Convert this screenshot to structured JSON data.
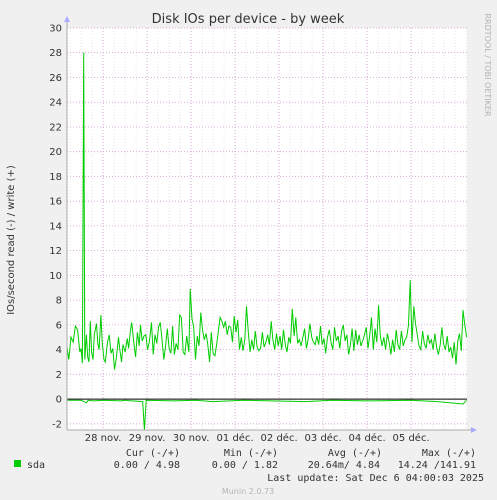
{
  "chart_data": {
    "type": "line",
    "title": "Disk IOs per device - by week",
    "ylabel": "IOs/second read (-) / write (+)",
    "side_text": "RRDTOOL / TOBI OETIKER",
    "ylim": [
      -2.5,
      30
    ],
    "y_ticks": [
      -2,
      0,
      2,
      4,
      6,
      8,
      10,
      12,
      14,
      16,
      18,
      20,
      22,
      24,
      26,
      28,
      30
    ],
    "x_ticks": [
      "28 nov.",
      "29 nov.",
      "30 nov.",
      "01 déc.",
      "02 déc.",
      "03 déc.",
      "04 déc.",
      "05 déc."
    ],
    "x_tick_positions": [
      1,
      2,
      3,
      4,
      5,
      6,
      7,
      8
    ],
    "xlim": [
      0.18,
      9.27
    ],
    "grid": true,
    "series": [
      {
        "name": "sda",
        "color": "#00cc00",
        "write_values": [
          [
            0.18,
            4.2
          ],
          [
            0.22,
            3.2
          ],
          [
            0.27,
            5.0
          ],
          [
            0.32,
            4.6
          ],
          [
            0.37,
            5.9
          ],
          [
            0.42,
            5.6
          ],
          [
            0.47,
            3.8
          ],
          [
            0.5,
            4.1
          ],
          [
            0.53,
            2.9
          ],
          [
            0.56,
            28.0
          ],
          [
            0.585,
            3.2
          ],
          [
            0.62,
            5.2
          ],
          [
            0.65,
            3.4
          ],
          [
            0.68,
            3.0
          ],
          [
            0.71,
            6.3
          ],
          [
            0.74,
            3.8
          ],
          [
            0.77,
            3.2
          ],
          [
            0.8,
            5.2
          ],
          [
            0.85,
            6.1
          ],
          [
            0.88,
            4.5
          ],
          [
            0.91,
            4.0
          ],
          [
            0.95,
            6.8
          ],
          [
            0.98,
            4.6
          ],
          [
            1.02,
            3.2
          ],
          [
            1.05,
            3.0
          ],
          [
            1.1,
            4.6
          ],
          [
            1.14,
            5.2
          ],
          [
            1.18,
            3.7
          ],
          [
            1.22,
            4.1
          ],
          [
            1.26,
            2.4
          ],
          [
            1.3,
            3.3
          ],
          [
            1.35,
            5.0
          ],
          [
            1.38,
            4.0
          ],
          [
            1.42,
            3.0
          ],
          [
            1.45,
            4.4
          ],
          [
            1.5,
            3.8
          ],
          [
            1.55,
            4.9
          ],
          [
            1.58,
            4.1
          ],
          [
            1.62,
            5.5
          ],
          [
            1.65,
            6.2
          ],
          [
            1.7,
            4.5
          ],
          [
            1.74,
            3.4
          ],
          [
            1.78,
            5.4
          ],
          [
            1.82,
            4.3
          ],
          [
            1.85,
            6.0
          ],
          [
            1.89,
            4.7
          ],
          [
            1.93,
            5.1
          ],
          [
            1.97,
            5.2
          ],
          [
            2.01,
            4.0
          ],
          [
            2.05,
            4.6
          ],
          [
            2.1,
            6.2
          ],
          [
            2.14,
            3.6
          ],
          [
            2.18,
            5.2
          ],
          [
            2.22,
            4.5
          ],
          [
            2.26,
            5.8
          ],
          [
            2.3,
            6.2
          ],
          [
            2.34,
            4.8
          ],
          [
            2.38,
            3.2
          ],
          [
            2.42,
            4.3
          ],
          [
            2.46,
            5.7
          ],
          [
            2.5,
            4.1
          ],
          [
            2.54,
            3.7
          ],
          [
            2.58,
            5.9
          ],
          [
            2.62,
            3.6
          ],
          [
            2.66,
            4.5
          ],
          [
            2.7,
            4.0
          ],
          [
            2.74,
            6.8
          ],
          [
            2.78,
            6.6
          ],
          [
            2.82,
            3.8
          ],
          [
            2.86,
            3.6
          ],
          [
            2.9,
            5.1
          ],
          [
            2.95,
            3.8
          ],
          [
            2.98,
            8.9
          ],
          [
            3.02,
            6.5
          ],
          [
            3.06,
            5.8
          ],
          [
            3.1,
            3.2
          ],
          [
            3.14,
            5.1
          ],
          [
            3.18,
            4.3
          ],
          [
            3.22,
            7.0
          ],
          [
            3.26,
            5.6
          ],
          [
            3.3,
            4.8
          ],
          [
            3.34,
            5.3
          ],
          [
            3.38,
            4.4
          ],
          [
            3.42,
            3.0
          ],
          [
            3.46,
            5.4
          ],
          [
            3.5,
            3.7
          ],
          [
            3.54,
            3.5
          ],
          [
            3.58,
            4.4
          ],
          [
            3.62,
            5.5
          ],
          [
            3.66,
            6.6
          ],
          [
            3.7,
            6.3
          ],
          [
            3.74,
            5.8
          ],
          [
            3.78,
            6.3
          ],
          [
            3.82,
            5.2
          ],
          [
            3.86,
            5.9
          ],
          [
            3.9,
            5.8
          ],
          [
            3.94,
            4.6
          ],
          [
            3.98,
            6.7
          ],
          [
            4.02,
            5.4
          ],
          [
            4.06,
            6.4
          ],
          [
            4.1,
            4.0
          ],
          [
            4.14,
            5.0
          ],
          [
            4.18,
            3.9
          ],
          [
            4.22,
            4.8
          ],
          [
            4.26,
            7.5
          ],
          [
            4.3,
            5.4
          ],
          [
            4.34,
            3.8
          ],
          [
            4.38,
            4.8
          ],
          [
            4.42,
            4.0
          ],
          [
            4.46,
            5.5
          ],
          [
            4.5,
            4.2
          ],
          [
            4.54,
            3.9
          ],
          [
            4.58,
            4.1
          ],
          [
            4.62,
            5.4
          ],
          [
            4.66,
            4.2
          ],
          [
            4.7,
            4.6
          ],
          [
            4.74,
            5.2
          ],
          [
            4.78,
            4.4
          ],
          [
            4.82,
            6.3
          ],
          [
            4.86,
            4.8
          ],
          [
            4.9,
            4.0
          ],
          [
            4.94,
            5.3
          ],
          [
            4.98,
            4.3
          ],
          [
            5.02,
            5.1
          ],
          [
            5.06,
            4.0
          ],
          [
            5.1,
            5.6
          ],
          [
            5.14,
            4.4
          ],
          [
            5.18,
            3.8
          ],
          [
            5.22,
            5.0
          ],
          [
            5.26,
            4.5
          ],
          [
            5.3,
            7.3
          ],
          [
            5.34,
            5.1
          ],
          [
            5.38,
            6.6
          ],
          [
            5.42,
            4.5
          ],
          [
            5.46,
            4.8
          ],
          [
            5.5,
            4.3
          ],
          [
            5.54,
            5.0
          ],
          [
            5.58,
            5.7
          ],
          [
            5.62,
            4.1
          ],
          [
            5.66,
            4.8
          ],
          [
            5.7,
            6.1
          ],
          [
            5.74,
            5.0
          ],
          [
            5.78,
            4.6
          ],
          [
            5.82,
            4.4
          ],
          [
            5.86,
            5.1
          ],
          [
            5.9,
            4.4
          ],
          [
            5.94,
            5.9
          ],
          [
            5.98,
            4.4
          ],
          [
            6.02,
            4.9
          ],
          [
            6.06,
            3.7
          ],
          [
            6.1,
            5.0
          ],
          [
            6.14,
            5.6
          ],
          [
            6.18,
            4.6
          ],
          [
            6.22,
            4.0
          ],
          [
            6.26,
            5.8
          ],
          [
            6.3,
            4.7
          ],
          [
            6.34,
            5.1
          ],
          [
            6.38,
            4.1
          ],
          [
            6.42,
            5.5
          ],
          [
            6.46,
            6.0
          ],
          [
            6.5,
            4.7
          ],
          [
            6.54,
            5.2
          ],
          [
            6.58,
            3.6
          ],
          [
            6.62,
            4.4
          ],
          [
            6.66,
            5.7
          ],
          [
            6.7,
            3.9
          ],
          [
            6.74,
            5.6
          ],
          [
            6.78,
            4.4
          ],
          [
            6.82,
            5.2
          ],
          [
            6.86,
            4.3
          ],
          [
            6.9,
            4.7
          ],
          [
            6.94,
            5.2
          ],
          [
            6.98,
            5.8
          ],
          [
            7.02,
            4.1
          ],
          [
            7.06,
            5.2
          ],
          [
            7.1,
            6.6
          ],
          [
            7.14,
            4.0
          ],
          [
            7.18,
            5.7
          ],
          [
            7.22,
            4.6
          ],
          [
            7.26,
            7.6
          ],
          [
            7.3,
            5.1
          ],
          [
            7.34,
            4.3
          ],
          [
            7.38,
            5.0
          ],
          [
            7.42,
            4.0
          ],
          [
            7.46,
            5.3
          ],
          [
            7.5,
            4.6
          ],
          [
            7.54,
            3.6
          ],
          [
            7.58,
            4.8
          ],
          [
            7.62,
            3.8
          ],
          [
            7.66,
            5.6
          ],
          [
            7.7,
            4.4
          ],
          [
            7.74,
            4.0
          ],
          [
            7.78,
            5.5
          ],
          [
            7.82,
            4.3
          ],
          [
            7.86,
            4.8
          ],
          [
            7.9,
            5.0
          ],
          [
            7.94,
            6.0
          ],
          [
            7.98,
            9.6
          ],
          [
            8.02,
            4.6
          ],
          [
            8.06,
            7.5
          ],
          [
            8.1,
            6.1
          ],
          [
            8.14,
            5.2
          ],
          [
            8.18,
            4.3
          ],
          [
            8.22,
            4.0
          ],
          [
            8.26,
            5.5
          ],
          [
            8.3,
            4.5
          ],
          [
            8.34,
            4.1
          ],
          [
            8.38,
            5.2
          ],
          [
            8.42,
            4.5
          ],
          [
            8.46,
            4.8
          ],
          [
            8.5,
            4.0
          ],
          [
            8.54,
            5.3
          ],
          [
            8.58,
            4.2
          ],
          [
            8.62,
            3.6
          ],
          [
            8.66,
            4.4
          ],
          [
            8.7,
            5.8
          ],
          [
            8.74,
            4.4
          ],
          [
            8.78,
            4.0
          ],
          [
            8.82,
            5.1
          ],
          [
            8.86,
            3.8
          ],
          [
            8.9,
            4.2
          ],
          [
            8.94,
            3.3
          ],
          [
            8.98,
            4.6
          ],
          [
            9.02,
            2.8
          ],
          [
            9.06,
            4.7
          ],
          [
            9.1,
            5.3
          ],
          [
            9.14,
            3.9
          ],
          [
            9.18,
            7.2
          ],
          [
            9.22,
            6.0
          ],
          [
            9.26,
            5.0
          ]
        ],
        "read_values": [
          [
            0.18,
            -0.1
          ],
          [
            0.5,
            -0.1
          ],
          [
            0.62,
            -0.3
          ],
          [
            0.66,
            -0.1
          ],
          [
            0.78,
            -0.15
          ],
          [
            1.02,
            -0.1
          ],
          [
            1.4,
            -0.15
          ],
          [
            1.5,
            -0.1
          ],
          [
            1.9,
            -0.2
          ],
          [
            1.94,
            -2.5
          ],
          [
            1.98,
            -0.1
          ],
          [
            2.6,
            -0.15
          ],
          [
            3.1,
            -0.1
          ],
          [
            3.5,
            -0.2
          ],
          [
            4.2,
            -0.1
          ],
          [
            5.6,
            -0.2
          ],
          [
            6.2,
            -0.1
          ],
          [
            7.0,
            -0.15
          ],
          [
            8.0,
            -0.1
          ],
          [
            8.6,
            -0.2
          ],
          [
            9.18,
            -0.4
          ],
          [
            9.26,
            -0.1
          ]
        ]
      }
    ],
    "legend": {
      "label": "sda",
      "columns": {
        "cur_header": "Cur (-/+)",
        "min_header": "Min (-/+)",
        "avg_header": "Avg (-/+)",
        "max_header": "Max (-/+)",
        "cur_value": "0.00 /  4.98",
        "min_value": "0.00 /  1.82",
        "avg_value": "20.64m/  4.84",
        "max_value": "14.24 /141.91"
      },
      "last_update": "Last update: Sat Dec  6 04:00:03 2025"
    },
    "footer": "Munin 2.0.73"
  }
}
